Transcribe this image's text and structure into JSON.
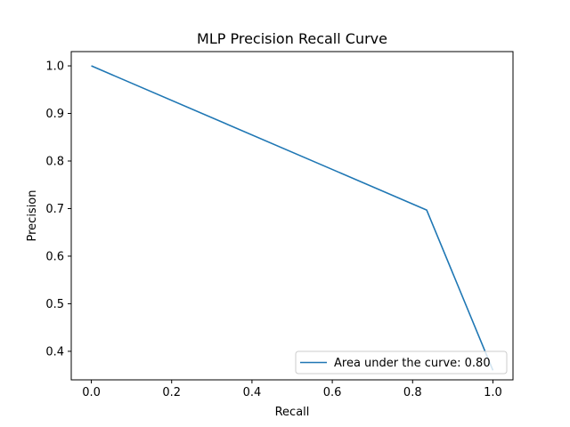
{
  "chart_data": {
    "type": "line",
    "title": "MLP Precision Recall Curve",
    "xlabel": "Recall",
    "ylabel": "Precision",
    "xlim": [
      -0.05,
      1.05
    ],
    "ylim": [
      0.34,
      1.03
    ],
    "xticks": [
      0.0,
      0.2,
      0.4,
      0.6,
      0.8,
      1.0
    ],
    "xtick_labels": [
      "0.0",
      "0.2",
      "0.4",
      "0.6",
      "0.8",
      "1.0"
    ],
    "yticks": [
      0.4,
      0.5,
      0.6,
      0.7,
      0.8,
      0.9,
      1.0
    ],
    "ytick_labels": [
      "0.4",
      "0.5",
      "0.6",
      "0.7",
      "0.8",
      "0.9",
      "1.0"
    ],
    "grid": false,
    "legend_position": "lower-right",
    "series": [
      {
        "name": "Area under the curve: 0.80",
        "color": "#1f77b4",
        "x": [
          0.0,
          0.835,
          1.0
        ],
        "y": [
          1.0,
          0.697,
          0.36
        ]
      }
    ]
  }
}
